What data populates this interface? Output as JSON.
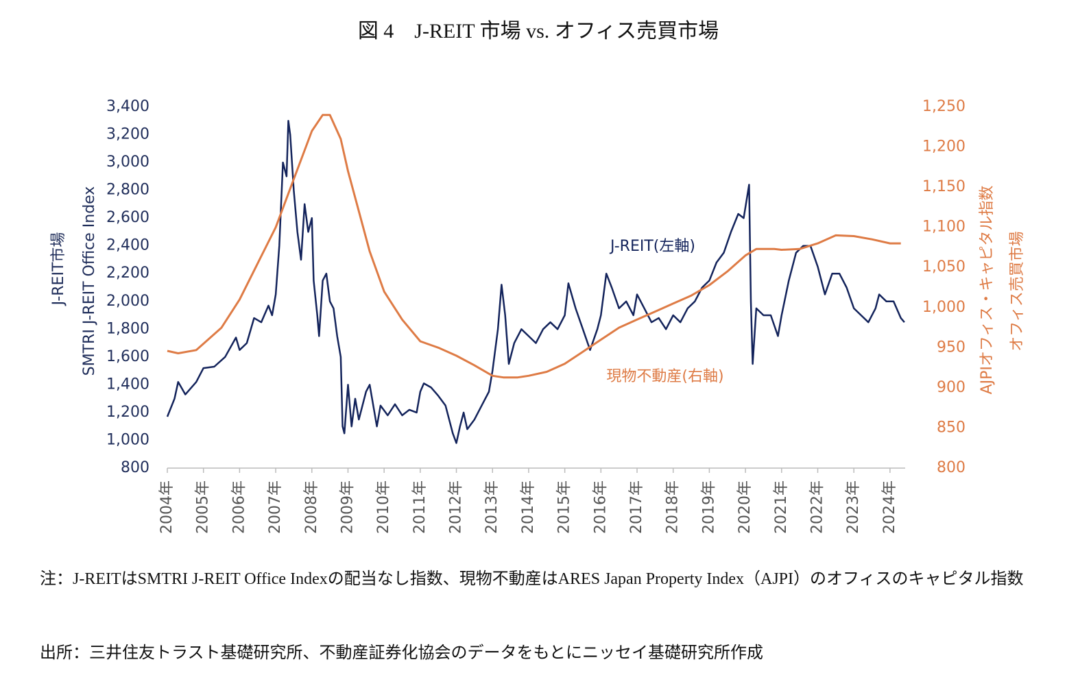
{
  "chart_data": {
    "type": "line",
    "title": "図 4　J-REIT 市場 vs. オフィス売買市場",
    "y_label": "J-REIT市場",
    "y_label_2": "SMTRI J-REIT Office Index",
    "y2_label": "AJPIオフィス・キャピタル指数",
    "y2_label_2": "オフィス売買市場",
    "xlim": [
      2004,
      2024.42
    ],
    "xticks": [
      {
        "value": 2004,
        "label": "2004年"
      },
      {
        "value": 2005,
        "label": "2005年"
      },
      {
        "value": 2006,
        "label": "2006年"
      },
      {
        "value": 2007,
        "label": "2007年"
      },
      {
        "value": 2008,
        "label": "2008年"
      },
      {
        "value": 2009,
        "label": "2009年"
      },
      {
        "value": 2010,
        "label": "2010年"
      },
      {
        "value": 2011,
        "label": "2011年"
      },
      {
        "value": 2012,
        "label": "2012年"
      },
      {
        "value": 2013,
        "label": "2013年"
      },
      {
        "value": 2014,
        "label": "2014年"
      },
      {
        "value": 2015,
        "label": "2015年"
      },
      {
        "value": 2016,
        "label": "2016年"
      },
      {
        "value": 2017,
        "label": "2017年"
      },
      {
        "value": 2018,
        "label": "2018年"
      },
      {
        "value": 2019,
        "label": "2019年"
      },
      {
        "value": 2020,
        "label": "2020年"
      },
      {
        "value": 2021,
        "label": "2021年"
      },
      {
        "value": 2022,
        "label": "2022年"
      },
      {
        "value": 2023,
        "label": "2023年"
      },
      {
        "value": 2024,
        "label": "2024年"
      }
    ],
    "ylim": [
      800,
      3400
    ],
    "yticks": [
      800,
      {
        "value": 1000,
        "label": "1,000"
      },
      {
        "value": 1200,
        "label": "1,200"
      },
      {
        "value": 1400,
        "label": "1,400"
      },
      {
        "value": 1600,
        "label": "1,600"
      },
      {
        "value": 1800,
        "label": "1,800"
      },
      {
        "value": 2000,
        "label": "2,000"
      },
      {
        "value": 2200,
        "label": "2,200"
      },
      {
        "value": 2400,
        "label": "2,400"
      },
      {
        "value": 2600,
        "label": "2,600"
      },
      {
        "value": 2800,
        "label": "2,800"
      },
      {
        "value": 3000,
        "label": "3,000"
      },
      {
        "value": 3200,
        "label": "3,200"
      },
      {
        "value": 3400,
        "label": "3,400"
      }
    ],
    "y2lim": [
      800,
      1250
    ],
    "y2ticks": [
      800,
      850,
      900,
      950,
      {
        "value": 1000,
        "label": "1,000"
      },
      {
        "value": 1050,
        "label": "1,050"
      },
      {
        "value": 1100,
        "label": "1,100"
      },
      {
        "value": 1150,
        "label": "1,150"
      },
      {
        "value": 1200,
        "label": "1,200"
      },
      {
        "value": 1250,
        "label": "1,250"
      }
    ],
    "series": [
      {
        "name": "J-REIT(左軸)",
        "color": "#13235b",
        "axis": "y",
        "x": [
          2004.0,
          2004.2,
          2004.3,
          2004.5,
          2004.8,
          2005.0,
          2005.3,
          2005.6,
          2005.9,
          2006.0,
          2006.2,
          2006.4,
          2006.6,
          2006.8,
          2006.9,
          2007.0,
          2007.1,
          2007.2,
          2007.3,
          2007.35,
          2007.4,
          2007.5,
          2007.6,
          2007.7,
          2007.8,
          2007.9,
          2008.0,
          2008.05,
          2008.15,
          2008.2,
          2008.3,
          2008.4,
          2008.5,
          2008.6,
          2008.7,
          2008.8,
          2008.85,
          2008.9,
          2009.0,
          2009.1,
          2009.2,
          2009.3,
          2009.5,
          2009.6,
          2009.8,
          2009.9,
          2010.1,
          2010.3,
          2010.5,
          2010.7,
          2010.9,
          2011.0,
          2011.1,
          2011.3,
          2011.5,
          2011.7,
          2011.9,
          2012.0,
          2012.1,
          2012.2,
          2012.3,
          2012.5,
          2012.7,
          2012.9,
          2013.0,
          2013.15,
          2013.25,
          2013.35,
          2013.45,
          2013.6,
          2013.8,
          2014.0,
          2014.2,
          2014.4,
          2014.6,
          2014.8,
          2015.0,
          2015.1,
          2015.3,
          2015.5,
          2015.7,
          2015.9,
          2016.0,
          2016.15,
          2016.3,
          2016.5,
          2016.7,
          2016.9,
          2017.0,
          2017.2,
          2017.4,
          2017.6,
          2017.8,
          2018.0,
          2018.2,
          2018.4,
          2018.6,
          2018.8,
          2019.0,
          2019.2,
          2019.4,
          2019.6,
          2019.8,
          2019.95,
          2020.1,
          2020.15,
          2020.2,
          2020.3,
          2020.5,
          2020.7,
          2020.9,
          2021.0,
          2021.2,
          2021.4,
          2021.6,
          2021.8,
          2022.0,
          2022.2,
          2022.4,
          2022.6,
          2022.8,
          2023.0,
          2023.2,
          2023.4,
          2023.6,
          2023.7,
          2023.9,
          2024.1,
          2024.3,
          2024.4
        ],
        "values": [
          1170,
          1300,
          1420,
          1330,
          1420,
          1520,
          1530,
          1600,
          1740,
          1650,
          1700,
          1880,
          1850,
          1970,
          1900,
          2050,
          2400,
          3000,
          2900,
          3300,
          3200,
          2800,
          2500,
          2300,
          2700,
          2500,
          2600,
          2150,
          1900,
          1750,
          2150,
          2200,
          2000,
          1950,
          1750,
          1600,
          1100,
          1050,
          1400,
          1100,
          1300,
          1150,
          1350,
          1400,
          1100,
          1250,
          1180,
          1260,
          1180,
          1220,
          1200,
          1350,
          1410,
          1380,
          1320,
          1250,
          1050,
          980,
          1100,
          1200,
          1080,
          1150,
          1250,
          1350,
          1500,
          1800,
          2120,
          1900,
          1550,
          1700,
          1800,
          1750,
          1700,
          1800,
          1850,
          1800,
          1900,
          2130,
          1950,
          1800,
          1650,
          1800,
          1900,
          2200,
          2100,
          1950,
          2000,
          1900,
          2050,
          1950,
          1850,
          1880,
          1800,
          1900,
          1850,
          1950,
          2000,
          2100,
          2150,
          2280,
          2350,
          2500,
          2630,
          2600,
          2840,
          2000,
          1550,
          1950,
          1900,
          1900,
          1750,
          1900,
          2150,
          2350,
          2400,
          2400,
          2250,
          2050,
          2200,
          2200,
          2100,
          1950,
          1900,
          1850,
          1950,
          2050,
          2000,
          2000,
          1880,
          1850
        ]
      },
      {
        "name": "現物不動産(右軸)",
        "color": "#de7b45",
        "axis": "y2",
        "x": [
          2004.0,
          2004.3,
          2004.8,
          2005.0,
          2005.5,
          2006.0,
          2006.5,
          2007.0,
          2007.5,
          2008.0,
          2008.3,
          2008.5,
          2008.8,
          2009.0,
          2009.3,
          2009.6,
          2010.0,
          2010.5,
          2011.0,
          2011.5,
          2012.0,
          2012.5,
          2013.0,
          2013.3,
          2013.7,
          2014.0,
          2014.5,
          2015.0,
          2015.5,
          2016.0,
          2016.5,
          2017.0,
          2017.5,
          2018.0,
          2018.5,
          2019.0,
          2019.5,
          2020.0,
          2020.3,
          2020.8,
          2021.0,
          2021.5,
          2022.0,
          2022.5,
          2023.0,
          2023.5,
          2024.0,
          2024.3
        ],
        "values": [
          946,
          943,
          947,
          955,
          975,
          1010,
          1055,
          1100,
          1160,
          1220,
          1240,
          1240,
          1210,
          1170,
          1120,
          1070,
          1020,
          985,
          958,
          950,
          940,
          928,
          915,
          913,
          913,
          915,
          920,
          930,
          945,
          960,
          975,
          985,
          995,
          1005,
          1015,
          1028,
          1045,
          1065,
          1073,
          1073,
          1072,
          1073,
          1080,
          1090,
          1089,
          1085,
          1080,
          1080
        ]
      }
    ],
    "notes": [
      "注：J-REITはSMTRI J-REIT Office Indexの配当なし指数、現物不動産はARES Japan Property Index（AJPI）のオフィスのキャピタル指数",
      "出所：三井住友トラスト基礎研究所、不動産証券化協会のデータをもとにニッセイ基礎研究所作成"
    ]
  }
}
